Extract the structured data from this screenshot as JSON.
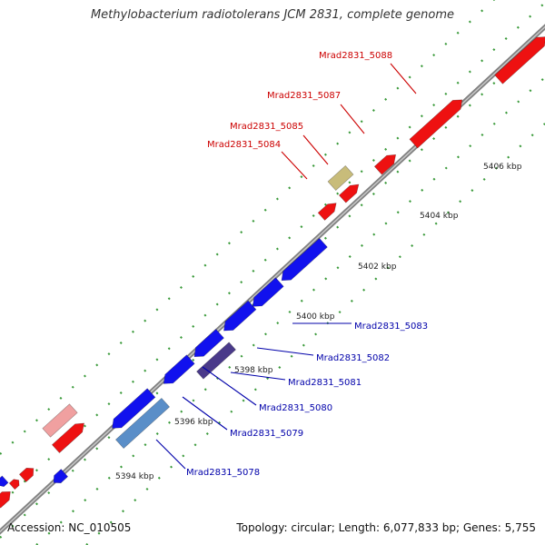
{
  "title": "Methylobacterium radiotolerans JCM 2831, complete genome",
  "footer": {
    "accession": "Accession: NC_010505",
    "summary": "Topology: circular; Length: 6,077,833 bp; Genes: 5,755"
  },
  "colors": {
    "forward": "#ee1111",
    "reverse": "#1111ee",
    "forward_light": "#f0a0a0",
    "reverse_steel": "#5a8ec8",
    "reverse_dark": "#4a3a8a",
    "olive": "#c8bc7a",
    "label_forward": "#cc0000",
    "label_reverse": "#0000aa",
    "axis": "#808080",
    "tick_dots": "#3a9a3a"
  },
  "scale_ticks": [
    {
      "label": "5394 kbp"
    },
    {
      "label": "5396 kbp"
    },
    {
      "label": "5398 kbp"
    },
    {
      "label": "5400 kbp"
    },
    {
      "label": "5402 kbp"
    },
    {
      "label": "5404 kbp"
    },
    {
      "label": "5406 kbp"
    }
  ],
  "genes": [
    {
      "label": "Mrad2831_5078",
      "strand": "reverse"
    },
    {
      "label": "Mrad2831_5079",
      "strand": "reverse"
    },
    {
      "label": "Mrad2831_5080",
      "strand": "reverse"
    },
    {
      "label": "Mrad2831_5081",
      "strand": "reverse"
    },
    {
      "label": "Mrad2831_5082",
      "strand": "reverse"
    },
    {
      "label": "Mrad2831_5083",
      "strand": "reverse"
    },
    {
      "label": "Mrad2831_5084",
      "strand": "forward"
    },
    {
      "label": "Mrad2831_5085",
      "strand": "forward"
    },
    {
      "label": "Mrad2831_5087",
      "strand": "forward"
    },
    {
      "label": "Mrad2831_5088",
      "strand": "forward"
    }
  ]
}
